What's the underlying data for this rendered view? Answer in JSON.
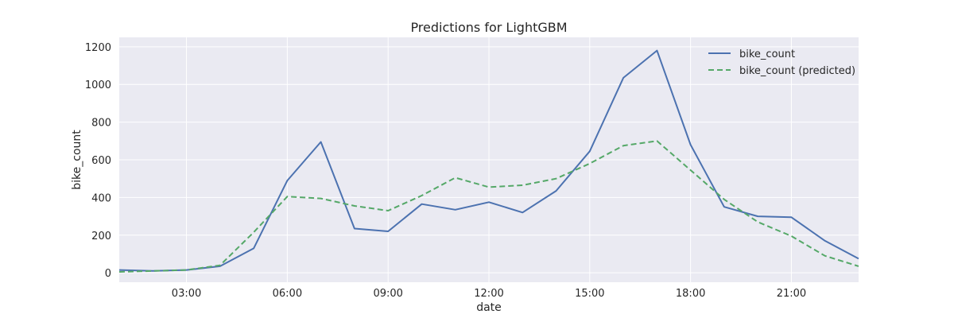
{
  "chart_data": {
    "type": "line",
    "title": "Predictions for LightGBM",
    "xlabel": "date",
    "ylabel": "bike_count",
    "x": [
      "01:00",
      "02:00",
      "03:00",
      "04:00",
      "05:00",
      "06:00",
      "07:00",
      "08:00",
      "09:00",
      "10:00",
      "11:00",
      "12:00",
      "13:00",
      "14:00",
      "15:00",
      "16:00",
      "17:00",
      "18:00",
      "19:00",
      "20:00",
      "21:00",
      "22:00",
      "23:00"
    ],
    "x_ticks": [
      "03:00",
      "06:00",
      "09:00",
      "12:00",
      "15:00",
      "18:00",
      "21:00"
    ],
    "y_ticks": [
      0,
      200,
      400,
      600,
      800,
      1000,
      1200
    ],
    "ylim": [
      -50,
      1250
    ],
    "grid": true,
    "legend_position": "top-right",
    "series": [
      {
        "name": "bike_count",
        "style": "solid",
        "color": "#4c72b0",
        "values": [
          15,
          10,
          15,
          35,
          130,
          490,
          695,
          235,
          220,
          365,
          335,
          375,
          320,
          435,
          645,
          1035,
          1180,
          680,
          350,
          300,
          295,
          170,
          75
        ]
      },
      {
        "name": "bike_count (predicted)",
        "style": "dashed",
        "color": "#55a868",
        "values": [
          5,
          10,
          15,
          40,
          215,
          405,
          395,
          355,
          330,
          410,
          505,
          455,
          465,
          500,
          580,
          675,
          700,
          545,
          390,
          270,
          195,
          90,
          35
        ]
      }
    ]
  },
  "colors": {
    "plot_background": "#eaeaf2",
    "grid": "#ffffff"
  }
}
